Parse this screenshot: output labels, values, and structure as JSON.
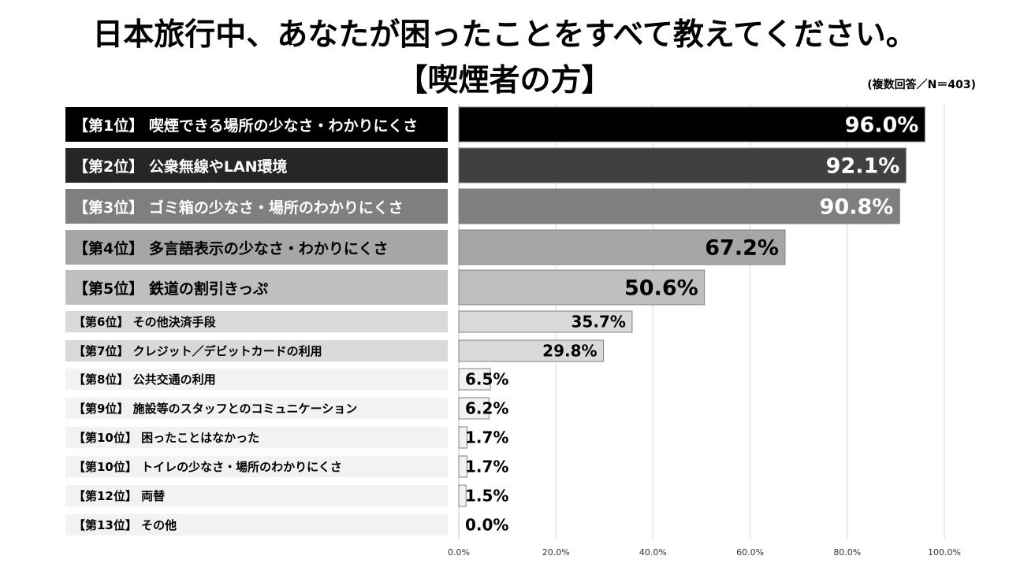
{
  "title": {
    "line1": "日本旅行中、あなたが困ったことをすべて教えてください。",
    "line2": "【喫煙者の方】"
  },
  "note": "(複数回答／N＝403)",
  "chart_data": {
    "type": "bar",
    "orientation": "horizontal",
    "categories": [
      "【第1位】 喫煙できる場所の少なさ・わかりにくさ",
      "【第2位】 公衆無線やLAN環境",
      "【第3位】 ゴミ箱の少なさ・場所のわかりにくさ",
      "【第4位】 多言語表示の少なさ・わかりにくさ",
      "【第5位】 鉄道の割引きっぷ",
      "【第6位】 その他決済手段",
      "【第7位】 クレジット／デビットカードの利用",
      "【第8位】 公共交通の利用",
      "【第9位】 施設等のスタッフとのコミュニケーション",
      "【第10位】 困ったことはなかった",
      "【第10位】 トイレの少なさ・場所のわかりにくさ",
      "【第12位】 両替",
      "【第13位】 その他"
    ],
    "values": [
      96.0,
      92.1,
      90.8,
      67.2,
      50.6,
      35.7,
      29.8,
      6.5,
      6.2,
      1.7,
      1.7,
      1.5,
      0.0
    ],
    "value_labels": [
      "96.0%",
      "92.1%",
      "90.8%",
      "67.2%",
      "50.6%",
      "35.7%",
      "29.8%",
      "6.5%",
      "6.2%",
      "1.7%",
      "1.7%",
      "1.5%",
      "0.0%"
    ],
    "xlim": [
      0,
      100
    ],
    "xticks": [
      "0.0%",
      "20.0%",
      "40.0%",
      "60.0%",
      "80.0%",
      "100.0%"
    ],
    "grid": true,
    "colors": {
      "bars": [
        "#000000",
        "#404040",
        "#7f7f7f",
        "#a6a6a6",
        "#bfbfbf",
        "#d9d9d9",
        "#d9d9d9",
        "#f2f2f2",
        "#f2f2f2",
        "#f2f2f2",
        "#f2f2f2",
        "#f2f2f2",
        "#f2f2f2"
      ],
      "label_bg": [
        "#000000",
        "#262626",
        "#7f7f7f",
        "#a6a6a6",
        "#bfbfbf",
        "#d9d9d9",
        "#d9d9d9",
        "#f2f2f2",
        "#f2f2f2",
        "#f2f2f2",
        "#f2f2f2",
        "#f2f2f2",
        "#f2f2f2"
      ],
      "label_text": [
        "#ffffff",
        "#ffffff",
        "#ffffff",
        "#000000",
        "#000000",
        "#000000",
        "#000000",
        "#000000",
        "#000000",
        "#000000",
        "#000000",
        "#000000",
        "#000000"
      ],
      "value_text": [
        "#ffffff",
        "#ffffff",
        "#ffffff",
        "#000000",
        "#000000",
        "#000000",
        "#000000",
        "#000000",
        "#000000",
        "#000000",
        "#000000",
        "#000000",
        "#000000"
      ],
      "bar_border": "#808080",
      "grid": "#d9d9d9"
    }
  }
}
